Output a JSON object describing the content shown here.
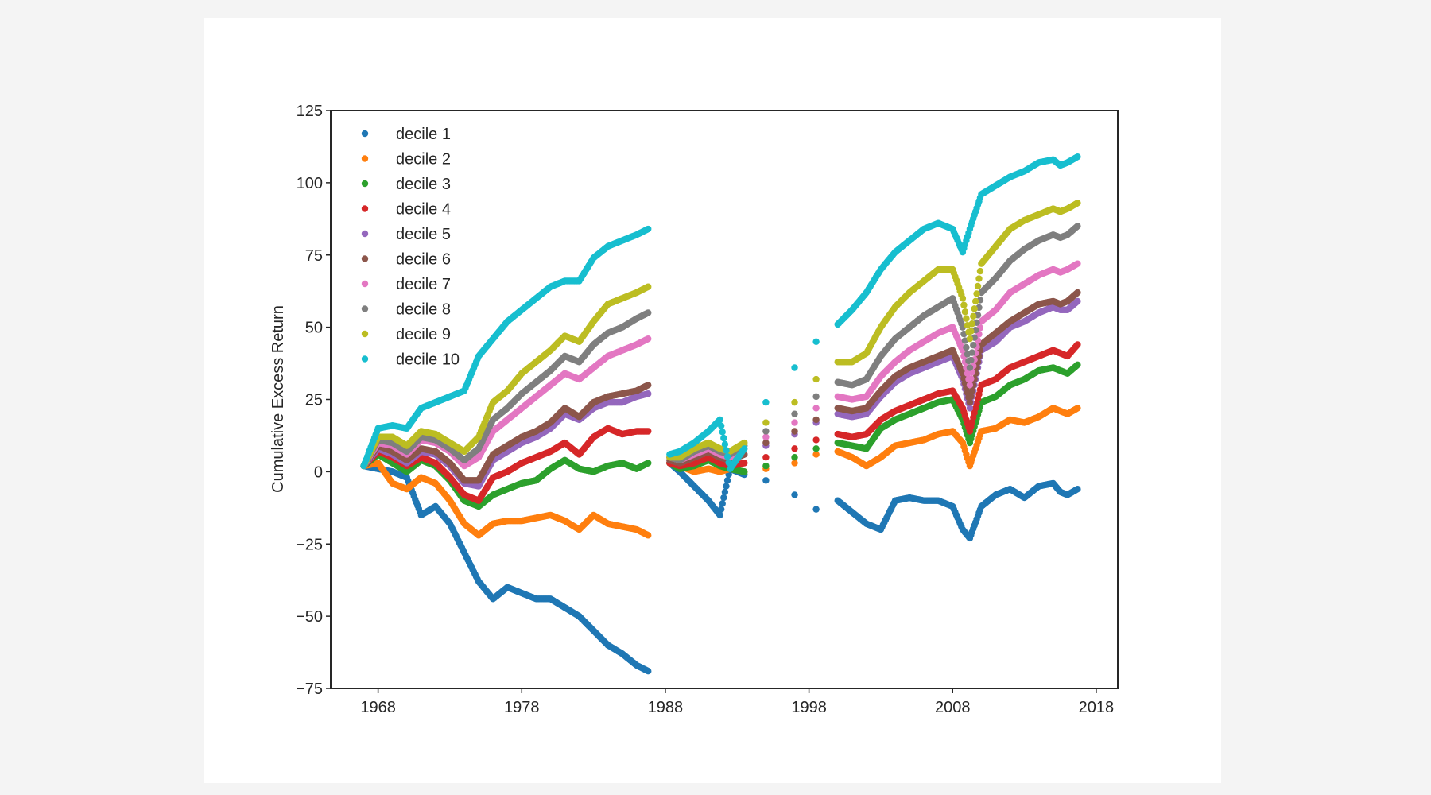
{
  "chart_data": {
    "type": "scatter",
    "title": "",
    "xlabel": "",
    "ylabel": "Cumulative Excess Return",
    "xlim": [
      1964.7,
      2019.5
    ],
    "ylim": [
      -75,
      125
    ],
    "xticks": [
      "1968",
      "1978",
      "1988",
      "1998",
      "2008",
      "2018"
    ],
    "yticks": [
      "−75",
      "−50",
      "−25",
      "0",
      "25",
      "50",
      "75",
      "100",
      "125"
    ],
    "grid": false,
    "legend_position": "top-left",
    "series": [
      {
        "name": "decile 1",
        "color": "#1f77b4",
        "x": [
          1967.0,
          1968.0,
          1969.0,
          1970.0,
          1971.0,
          1972.0,
          1973.0,
          1974.0,
          1975.0,
          1976.0,
          1977.0,
          1978.0,
          1979.0,
          1980.0,
          1981.0,
          1982.0,
          1983.0,
          1984.0,
          1985.0,
          1986.0,
          1986.8,
          1988.3,
          1989.0,
          1990.0,
          1991.0,
          1991.8,
          1992.5,
          1993.5,
          1995.0,
          1997.0,
          1998.5,
          2000.0,
          2001.0,
          2002.0,
          2003.0,
          2004.0,
          2005.0,
          2006.0,
          2007.0,
          2008.0,
          2008.7,
          2009.2,
          2010.0,
          2011.0,
          2012.0,
          2013.0,
          2014.0,
          2015.0,
          2015.5,
          2016.0,
          2016.7
        ],
        "y": [
          2,
          1,
          0,
          -2,
          -15,
          -12,
          -18,
          -28,
          -38,
          -44,
          -40,
          -42,
          -44,
          -44,
          -47,
          -50,
          -55,
          -60,
          -63,
          -67,
          -69,
          3,
          0,
          -5,
          -10,
          -15,
          1,
          -1,
          -3,
          -8,
          -13,
          -10,
          -14,
          -18,
          -20,
          -10,
          -9,
          -10,
          -10,
          -12,
          -20,
          -23,
          -12,
          -8,
          -6,
          -9,
          -5,
          -4,
          -7,
          -8,
          -6
        ]
      },
      {
        "name": "decile 2",
        "color": "#ff7f0e",
        "x": [
          1967.0,
          1968.0,
          1969.0,
          1970.0,
          1971.0,
          1972.0,
          1973.0,
          1974.0,
          1975.0,
          1976.0,
          1977.0,
          1978.0,
          1979.0,
          1980.0,
          1981.0,
          1982.0,
          1983.0,
          1984.0,
          1985.0,
          1986.0,
          1986.8,
          1988.3,
          1989.0,
          1990.0,
          1991.0,
          1991.8,
          1992.5,
          1993.5,
          1995.0,
          1997.0,
          1998.5,
          2000.0,
          2001.0,
          2002.0,
          2003.0,
          2004.0,
          2005.0,
          2006.0,
          2007.0,
          2008.0,
          2008.7,
          2009.2,
          2010.0,
          2011.0,
          2012.0,
          2013.0,
          2014.0,
          2015.0,
          2015.5,
          2016.0,
          2016.7
        ],
        "y": [
          2,
          3,
          -4,
          -6,
          -2,
          -4,
          -10,
          -18,
          -22,
          -18,
          -17,
          -17,
          -16,
          -15,
          -17,
          -20,
          -15,
          -18,
          -19,
          -20,
          -22,
          3,
          2,
          0,
          1,
          0,
          1,
          0,
          1,
          3,
          6,
          7,
          5,
          2,
          5,
          9,
          10,
          11,
          13,
          14,
          10,
          2,
          14,
          15,
          18,
          17,
          19,
          22,
          21,
          20,
          22
        ]
      },
      {
        "name": "decile 3",
        "color": "#2ca02c",
        "x": [
          1967.0,
          1968.0,
          1969.0,
          1970.0,
          1971.0,
          1972.0,
          1973.0,
          1974.0,
          1975.0,
          1976.0,
          1977.0,
          1978.0,
          1979.0,
          1980.0,
          1981.0,
          1982.0,
          1983.0,
          1984.0,
          1985.0,
          1986.0,
          1986.8,
          1988.3,
          1989.0,
          1990.0,
          1991.0,
          1991.8,
          1992.5,
          1993.5,
          1995.0,
          1997.0,
          1998.5,
          2000.0,
          2001.0,
          2002.0,
          2003.0,
          2004.0,
          2005.0,
          2006.0,
          2007.0,
          2008.0,
          2008.7,
          2009.2,
          2010.0,
          2011.0,
          2012.0,
          2013.0,
          2014.0,
          2015.0,
          2015.5,
          2016.0,
          2016.7
        ],
        "y": [
          2,
          6,
          3,
          0,
          4,
          2,
          -3,
          -10,
          -12,
          -8,
          -6,
          -4,
          -3,
          1,
          4,
          1,
          0,
          2,
          3,
          1,
          3,
          3,
          1,
          2,
          4,
          2,
          1,
          0,
          2,
          5,
          8,
          10,
          9,
          8,
          15,
          18,
          20,
          22,
          24,
          25,
          18,
          10,
          24,
          26,
          30,
          32,
          35,
          36,
          35,
          34,
          37
        ]
      },
      {
        "name": "decile 4",
        "color": "#d62728",
        "x": [
          1967.0,
          1968.0,
          1969.0,
          1970.0,
          1971.0,
          1972.0,
          1973.0,
          1974.0,
          1975.0,
          1976.0,
          1977.0,
          1978.0,
          1979.0,
          1980.0,
          1981.0,
          1982.0,
          1983.0,
          1984.0,
          1985.0,
          1986.0,
          1986.8,
          1988.3,
          1989.0,
          1990.0,
          1991.0,
          1991.8,
          1992.5,
          1993.5,
          1995.0,
          1997.0,
          1998.5,
          2000.0,
          2001.0,
          2002.0,
          2003.0,
          2004.0,
          2005.0,
          2006.0,
          2007.0,
          2008.0,
          2008.7,
          2009.2,
          2010.0,
          2011.0,
          2012.0,
          2013.0,
          2014.0,
          2015.0,
          2015.5,
          2016.0,
          2016.7
        ],
        "y": [
          2,
          7,
          5,
          2,
          5,
          3,
          -2,
          -8,
          -10,
          -2,
          0,
          3,
          5,
          7,
          10,
          6,
          12,
          15,
          13,
          14,
          14,
          3,
          2,
          3,
          5,
          3,
          2,
          3,
          5,
          8,
          11,
          13,
          12,
          13,
          18,
          21,
          23,
          25,
          27,
          28,
          22,
          14,
          30,
          32,
          36,
          38,
          40,
          42,
          41,
          40,
          44
        ]
      },
      {
        "name": "decile 5",
        "color": "#9467bd",
        "x": [
          1967.0,
          1968.0,
          1969.0,
          1970.0,
          1971.0,
          1972.0,
          1973.0,
          1974.0,
          1975.0,
          1976.0,
          1977.0,
          1978.0,
          1979.0,
          1980.0,
          1981.0,
          1982.0,
          1983.0,
          1984.0,
          1985.0,
          1986.0,
          1986.8,
          1988.3,
          1989.0,
          1990.0,
          1991.0,
          1991.8,
          1992.5,
          1993.5,
          1995.0,
          1997.0,
          1998.5,
          2000.0,
          2001.0,
          2002.0,
          2003.0,
          2004.0,
          2005.0,
          2006.0,
          2007.0,
          2008.0,
          2008.7,
          2009.2,
          2010.0,
          2011.0,
          2012.0,
          2013.0,
          2014.0,
          2015.0,
          2015.5,
          2016.0,
          2016.7
        ],
        "y": [
          2,
          8,
          6,
          3,
          7,
          6,
          2,
          -4,
          -5,
          4,
          7,
          10,
          12,
          15,
          20,
          18,
          22,
          24,
          24,
          26,
          27,
          4,
          3,
          5,
          7,
          5,
          4,
          6,
          9,
          13,
          17,
          20,
          19,
          20,
          26,
          31,
          34,
          36,
          38,
          40,
          32,
          22,
          42,
          45,
          50,
          52,
          55,
          57,
          56,
          56,
          59
        ]
      },
      {
        "name": "decile 6",
        "color": "#8c564b",
        "x": [
          1967.0,
          1968.0,
          1969.0,
          1970.0,
          1971.0,
          1972.0,
          1973.0,
          1974.0,
          1975.0,
          1976.0,
          1977.0,
          1978.0,
          1979.0,
          1980.0,
          1981.0,
          1982.0,
          1983.0,
          1984.0,
          1985.0,
          1986.0,
          1986.8,
          1988.3,
          1989.0,
          1990.0,
          1991.0,
          1991.8,
          1992.5,
          1993.5,
          1995.0,
          1997.0,
          1998.5,
          2000.0,
          2001.0,
          2002.0,
          2003.0,
          2004.0,
          2005.0,
          2006.0,
          2007.0,
          2008.0,
          2008.7,
          2009.2,
          2010.0,
          2011.0,
          2012.0,
          2013.0,
          2014.0,
          2015.0,
          2015.5,
          2016.0,
          2016.7
        ],
        "y": [
          2,
          9,
          7,
          4,
          8,
          7,
          3,
          -3,
          -3,
          6,
          9,
          12,
          14,
          17,
          22,
          19,
          24,
          26,
          27,
          28,
          30,
          4,
          3,
          5,
          7,
          5,
          4,
          6,
          10,
          14,
          18,
          22,
          21,
          22,
          28,
          33,
          36,
          38,
          40,
          42,
          34,
          24,
          44,
          48,
          52,
          55,
          58,
          59,
          58,
          59,
          62
        ]
      },
      {
        "name": "decile 7",
        "color": "#e377c2",
        "x": [
          1967.0,
          1968.0,
          1969.0,
          1970.0,
          1971.0,
          1972.0,
          1973.0,
          1974.0,
          1975.0,
          1976.0,
          1977.0,
          1978.0,
          1979.0,
          1980.0,
          1981.0,
          1982.0,
          1983.0,
          1984.0,
          1985.0,
          1986.0,
          1986.8,
          1988.3,
          1989.0,
          1990.0,
          1991.0,
          1991.8,
          1992.5,
          1993.5,
          1995.0,
          1997.0,
          1998.5,
          2000.0,
          2001.0,
          2002.0,
          2003.0,
          2004.0,
          2005.0,
          2006.0,
          2007.0,
          2008.0,
          2008.7,
          2009.2,
          2010.0,
          2011.0,
          2012.0,
          2013.0,
          2014.0,
          2015.0,
          2015.5,
          2016.0,
          2016.7
        ],
        "y": [
          2,
          10,
          9,
          6,
          11,
          10,
          7,
          2,
          5,
          14,
          18,
          22,
          26,
          30,
          34,
          32,
          36,
          40,
          42,
          44,
          46,
          5,
          4,
          6,
          8,
          6,
          5,
          8,
          12,
          17,
          22,
          26,
          25,
          26,
          33,
          38,
          42,
          45,
          48,
          50,
          42,
          30,
          52,
          56,
          62,
          65,
          68,
          70,
          69,
          70,
          72
        ]
      },
      {
        "name": "decile 8",
        "color": "#7f7f7f",
        "x": [
          1967.0,
          1968.0,
          1969.0,
          1970.0,
          1971.0,
          1972.0,
          1973.0,
          1974.0,
          1975.0,
          1976.0,
          1977.0,
          1978.0,
          1979.0,
          1980.0,
          1981.0,
          1982.0,
          1983.0,
          1984.0,
          1985.0,
          1986.0,
          1986.8,
          1988.3,
          1989.0,
          1990.0,
          1991.0,
          1991.8,
          1992.5,
          1993.5,
          1995.0,
          1997.0,
          1998.5,
          2000.0,
          2001.0,
          2002.0,
          2003.0,
          2004.0,
          2005.0,
          2006.0,
          2007.0,
          2008.0,
          2008.7,
          2009.2,
          2010.0,
          2011.0,
          2012.0,
          2013.0,
          2014.0,
          2015.0,
          2015.5,
          2016.0,
          2016.7
        ],
        "y": [
          2,
          11,
          10,
          7,
          12,
          11,
          8,
          4,
          8,
          18,
          22,
          27,
          31,
          35,
          40,
          38,
          44,
          48,
          50,
          53,
          55,
          5,
          4,
          7,
          9,
          7,
          6,
          9,
          14,
          20,
          26,
          31,
          30,
          32,
          40,
          46,
          50,
          54,
          57,
          60,
          50,
          36,
          62,
          67,
          73,
          77,
          80,
          82,
          81,
          82,
          85
        ]
      },
      {
        "name": "decile 9",
        "color": "#bcbd22",
        "x": [
          1967.0,
          1968.0,
          1969.0,
          1970.0,
          1971.0,
          1972.0,
          1973.0,
          1974.0,
          1975.0,
          1976.0,
          1977.0,
          1978.0,
          1979.0,
          1980.0,
          1981.0,
          1982.0,
          1983.0,
          1984.0,
          1985.0,
          1986.0,
          1986.8,
          1988.3,
          1989.0,
          1990.0,
          1991.0,
          1991.8,
          1992.5,
          1993.5,
          1995.0,
          1997.0,
          1998.5,
          2000.0,
          2001.0,
          2002.0,
          2003.0,
          2004.0,
          2005.0,
          2006.0,
          2007.0,
          2008.0,
          2008.7,
          2009.2,
          2010.0,
          2011.0,
          2012.0,
          2013.0,
          2014.0,
          2015.0,
          2015.5,
          2016.0,
          2016.7
        ],
        "y": [
          2,
          12,
          12,
          9,
          14,
          13,
          10,
          7,
          12,
          24,
          28,
          34,
          38,
          42,
          47,
          45,
          52,
          58,
          60,
          62,
          64,
          5,
          5,
          8,
          10,
          8,
          7,
          10,
          17,
          24,
          32,
          38,
          38,
          41,
          50,
          57,
          62,
          66,
          70,
          70,
          60,
          46,
          72,
          78,
          84,
          87,
          89,
          91,
          90,
          91,
          93
        ]
      },
      {
        "name": "decile 10",
        "color": "#17becf",
        "x": [
          1967.0,
          1968.0,
          1969.0,
          1970.0,
          1971.0,
          1972.0,
          1973.0,
          1974.0,
          1975.0,
          1976.0,
          1977.0,
          1978.0,
          1979.0,
          1980.0,
          1981.0,
          1982.0,
          1983.0,
          1984.0,
          1985.0,
          1986.0,
          1986.8,
          1988.3,
          1989.0,
          1990.0,
          1991.0,
          1991.8,
          1992.5,
          1993.5,
          1995.0,
          1997.0,
          1998.5,
          2000.0,
          2001.0,
          2002.0,
          2003.0,
          2004.0,
          2005.0,
          2006.0,
          2007.0,
          2008.0,
          2008.7,
          2009.2,
          2010.0,
          2011.0,
          2012.0,
          2013.0,
          2014.0,
          2015.0,
          2015.5,
          2016.0,
          2016.7
        ],
        "y": [
          2,
          15,
          16,
          15,
          22,
          24,
          26,
          28,
          40,
          46,
          52,
          56,
          60,
          64,
          66,
          66,
          74,
          78,
          80,
          82,
          84,
          6,
          7,
          10,
          14,
          18,
          1,
          8,
          24,
          36,
          45,
          51,
          56,
          62,
          70,
          76,
          80,
          84,
          86,
          84,
          76,
          84,
          96,
          99,
          102,
          104,
          107,
          108,
          106,
          107,
          109
        ]
      }
    ]
  }
}
